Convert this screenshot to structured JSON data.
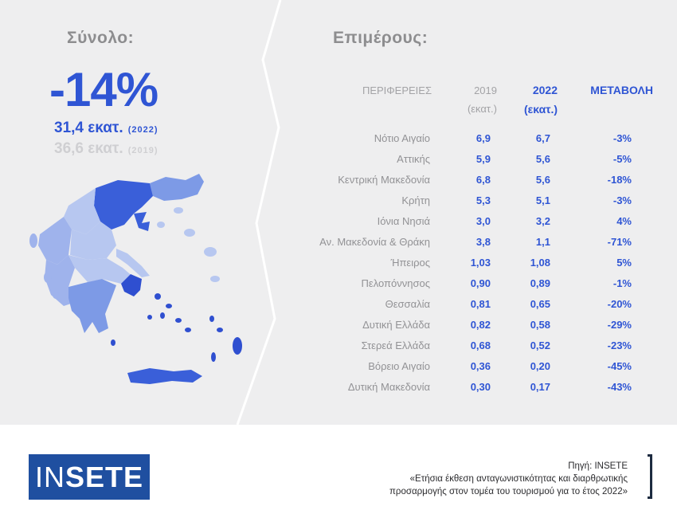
{
  "summary": {
    "title": "Σύνολο:",
    "total_change": "-14%",
    "value_2022": "31,4 εκατ.",
    "year_2022": "(2022)",
    "value_2019": "36,6 εκατ.",
    "year_2019": "(2019)"
  },
  "details": {
    "title": "Επιμέρους:",
    "columns": {
      "region": "ΠΕΡΙΦΕΡΕΙΕΣ",
      "y2019": "2019",
      "y2019_unit": "(εκατ.)",
      "y2022": "2022",
      "y2022_unit": "(εκατ.)",
      "change": "ΜΕΤΑΒΟΛΗ"
    },
    "rows": [
      {
        "region": "Νότιο Αιγαίο",
        "v2019": "6,9",
        "v2022": "6,7",
        "change": "-3%"
      },
      {
        "region": "Αττικής",
        "v2019": "5,9",
        "v2022": "5,6",
        "change": "-5%"
      },
      {
        "region": "Κεντρική Μακεδονία",
        "v2019": "6,8",
        "v2022": "5,6",
        "change": "-18%"
      },
      {
        "region": "Κρήτη",
        "v2019": "5,3",
        "v2022": "5,1",
        "change": "-3%"
      },
      {
        "region": "Ιόνια Νησιά",
        "v2019": "3,0",
        "v2022": "3,2",
        "change": "4%"
      },
      {
        "region": "Αν. Μακεδονία & Θράκη",
        "v2019": "3,8",
        "v2022": "1,1",
        "change": "-71%"
      },
      {
        "region": "Ήπειρος",
        "v2019": "1,03",
        "v2022": "1,08",
        "change": "5%"
      },
      {
        "region": "Πελοπόννησος",
        "v2019": "0,90",
        "v2022": "0,89",
        "change": "-1%"
      },
      {
        "region": "Θεσσαλία",
        "v2019": "0,81",
        "v2022": "0,65",
        "change": "-20%"
      },
      {
        "region": "Δυτική Ελλάδα",
        "v2019": "0,82",
        "v2022": "0,58",
        "change": "-29%"
      },
      {
        "region": "Στερεά Ελλάδα",
        "v2019": "0,68",
        "v2022": "0,52",
        "change": "-23%"
      },
      {
        "region": "Βόρειο Αιγαίο",
        "v2019": "0,36",
        "v2022": "0,20",
        "change": "-45%"
      },
      {
        "region": "Δυτική Μακεδονία",
        "v2019": "0,30",
        "v2022": "0,17",
        "change": "-43%"
      }
    ]
  },
  "footer": {
    "logo_part1": "IN",
    "logo_part2": "SETE",
    "source_line1": "Πηγή: INSETE",
    "source_line2": "«Ετήσια έκθεση ανταγωνιστικότητας και διαρθρωτικής",
    "source_line3": "προσαρμογής στον τομέα του τουρισμού για το έτος 2022»"
  },
  "colors": {
    "accent": "#2f55d4",
    "panel": "#eeeeef",
    "logo_bg": "#1f4fa0"
  }
}
